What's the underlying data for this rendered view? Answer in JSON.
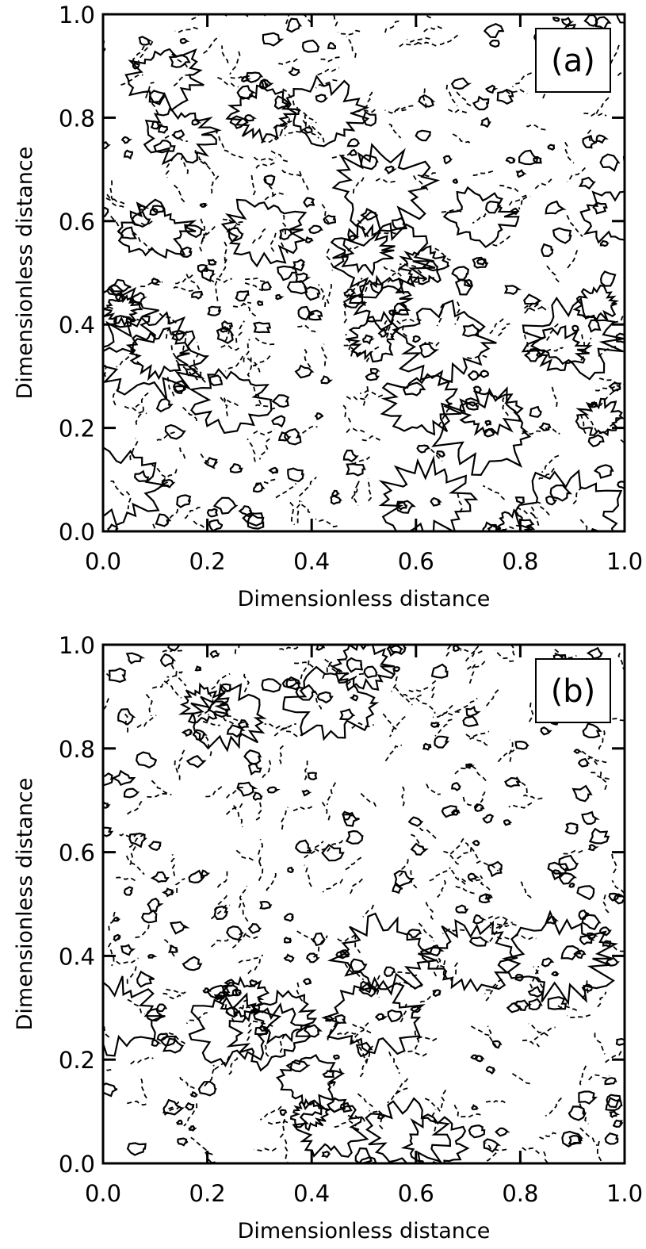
{
  "chart_data": [
    {
      "type": "contour",
      "title": "(a)",
      "xlabel": "Dimensionless distance",
      "ylabel": "Dimensionless distance",
      "xlim": [
        0,
        1
      ],
      "ylim": [
        0,
        1
      ],
      "xticks": [
        {
          "value": 0,
          "label": "0.0"
        },
        0.2,
        0.4,
        0.6,
        0.8,
        {
          "value": 1,
          "label": "1.0"
        }
      ],
      "yticks": [
        {
          "value": 0,
          "label": "0.0"
        },
        0.2,
        0.4,
        0.6,
        0.8,
        {
          "value": 1,
          "label": "1.0"
        }
      ]
    },
    {
      "type": "contour",
      "title": "(b)",
      "xlabel": "Dimensionless distance",
      "ylabel": "Dimensionless distance",
      "xlim": [
        0,
        1
      ],
      "ylim": [
        0,
        1
      ],
      "xticks": [
        {
          "value": 0,
          "label": "0.0"
        },
        0.2,
        0.4,
        0.6,
        0.8,
        {
          "value": 1,
          "label": "1.0"
        }
      ],
      "yticks": [
        {
          "value": 0,
          "label": "0.0"
        },
        0.2,
        0.4,
        0.6,
        0.8,
        {
          "value": 1,
          "label": "1.0"
        }
      ]
    }
  ]
}
